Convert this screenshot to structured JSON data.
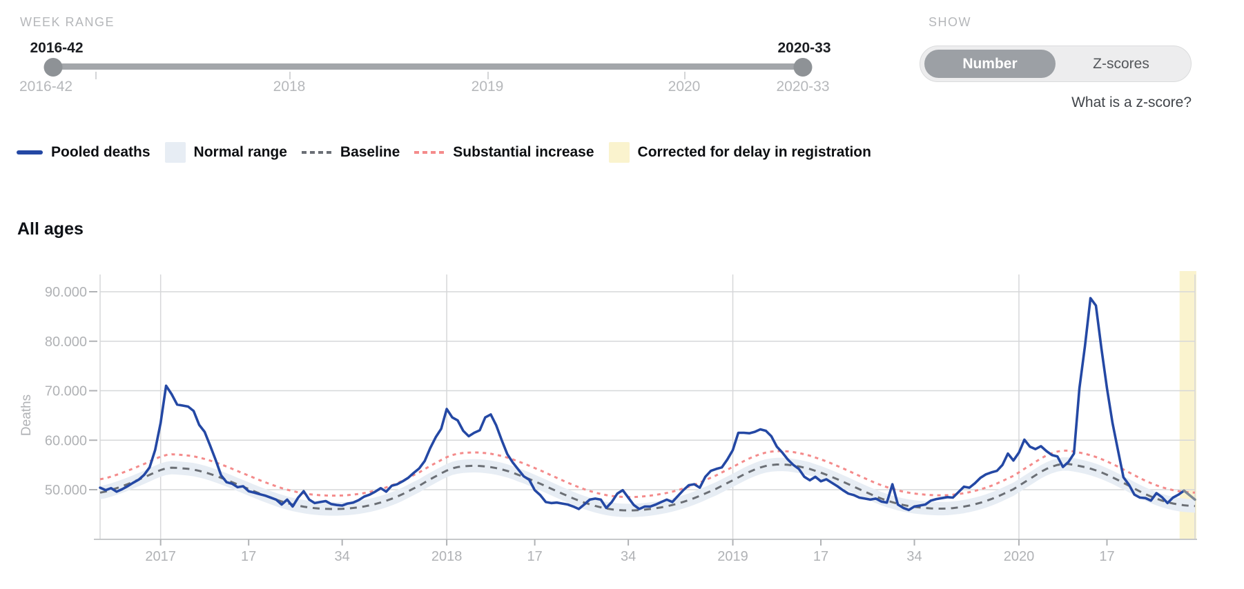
{
  "controls": {
    "week_range": {
      "label": "WEEK RANGE",
      "start_value": "2016-42",
      "end_value": "2020-33",
      "axis_labels": [
        "2016-42",
        "2018",
        "2019",
        "2020",
        "2020-33"
      ]
    },
    "show": {
      "label": "SHOW",
      "options": [
        "Number",
        "Z-scores"
      ],
      "selected": "Number",
      "help_text": "What is a z-score?"
    }
  },
  "legend": [
    {
      "label": "Pooled deaths",
      "swatch": "line",
      "color": "#2448a4"
    },
    {
      "label": "Normal range",
      "swatch": "square",
      "color": "#e7edf4"
    },
    {
      "label": "Baseline",
      "swatch": "dashes",
      "color": "#6b6f75"
    },
    {
      "label": "Substantial increase",
      "swatch": "dashes",
      "color": "#f48b8b"
    },
    {
      "label": "Corrected for delay in registration",
      "swatch": "square",
      "color": "#faf3ce"
    }
  ],
  "chart_data": {
    "type": "line",
    "title": "All ages",
    "ylabel": "Deaths",
    "x_range": {
      "start": "2016-42",
      "end": "2020-33",
      "weeks": 200
    },
    "ylim": [
      40000,
      94000
    ],
    "grid": true,
    "y_ticks": [
      {
        "value": 50000,
        "label": "50.000"
      },
      {
        "value": 60000,
        "label": "60.000"
      },
      {
        "value": 70000,
        "label": "70.000"
      },
      {
        "value": 80000,
        "label": "80.000"
      },
      {
        "value": 90000,
        "label": "90.000"
      }
    ],
    "x_ticks": [
      {
        "index": 11,
        "label": "2017",
        "year": true
      },
      {
        "index": 27,
        "label": "17"
      },
      {
        "index": 44,
        "label": "34"
      },
      {
        "index": 63,
        "label": "2018",
        "year": true
      },
      {
        "index": 79,
        "label": "17"
      },
      {
        "index": 96,
        "label": "34"
      },
      {
        "index": 115,
        "label": "2019",
        "year": true
      },
      {
        "index": 131,
        "label": "17"
      },
      {
        "index": 148,
        "label": "34"
      },
      {
        "index": 167,
        "label": "2020",
        "year": true
      },
      {
        "index": 183,
        "label": "17"
      }
    ],
    "corrected_band_from_index": 196.2,
    "corrected_line_from_index": 197,
    "series": {
      "pooled_deaths": [
        50400,
        49900,
        50300,
        49600,
        50100,
        50700,
        51400,
        52000,
        53000,
        54500,
        58000,
        63500,
        71000,
        69300,
        67200,
        67000,
        66800,
        65900,
        63100,
        61700,
        58900,
        56000,
        52900,
        51500,
        51200,
        50500,
        50700,
        49700,
        49400,
        49100,
        48800,
        48400,
        48000,
        47000,
        48000,
        46600,
        48400,
        49700,
        48000,
        47300,
        47500,
        47700,
        47100,
        46900,
        46800,
        47200,
        47400,
        47900,
        48600,
        49000,
        49600,
        50300,
        49600,
        50800,
        51100,
        51700,
        52400,
        53400,
        54300,
        55800,
        58400,
        60600,
        62300,
        66300,
        64600,
        64000,
        61900,
        60800,
        61500,
        62000,
        64600,
        65200,
        63000,
        60000,
        57200,
        55500,
        54100,
        52700,
        52000,
        49900,
        48900,
        47500,
        47300,
        47400,
        47200,
        47000,
        46600,
        46100,
        47000,
        48000,
        48200,
        48000,
        46300,
        47500,
        49200,
        49900,
        48400,
        46900,
        46100,
        46600,
        46600,
        47000,
        47500,
        48000,
        47500,
        48700,
        49900,
        50900,
        51100,
        50400,
        52600,
        53800,
        54200,
        54500,
        56100,
        58000,
        61500,
        61500,
        61400,
        61700,
        62200,
        61900,
        60800,
        58700,
        57500,
        56100,
        55000,
        54200,
        52600,
        51900,
        52600,
        51700,
        52100,
        51400,
        50700,
        49900,
        49200,
        48900,
        48400,
        48200,
        48000,
        48200,
        47600,
        47400,
        51100,
        47000,
        46300,
        45900,
        46600,
        46800,
        47000,
        47800,
        48100,
        48300,
        48500,
        48400,
        49500,
        50600,
        50400,
        51300,
        52400,
        53100,
        53500,
        53800,
        55000,
        57300,
        55900,
        57500,
        60100,
        58700,
        58200,
        58800,
        57800,
        57000,
        56700,
        54600,
        55600,
        57300,
        70500,
        79000,
        88700,
        87200,
        78500,
        70500,
        63500,
        58000,
        52500,
        51000,
        49000,
        48400,
        48300,
        47800,
        49300,
        48500,
        47300,
        48400,
        49000,
        49800,
        48900,
        48000
      ],
      "baseline_knots": [
        [
          0,
          49400
        ],
        [
          4,
          50700
        ],
        [
          8,
          52500
        ],
        [
          12,
          54300
        ],
        [
          15,
          54300
        ],
        [
          18,
          53800
        ],
        [
          22,
          52400
        ],
        [
          26,
          50600
        ],
        [
          30,
          48800
        ],
        [
          34,
          47300
        ],
        [
          38,
          46400
        ],
        [
          42,
          46100
        ],
        [
          46,
          46300
        ],
        [
          50,
          47100
        ],
        [
          54,
          48600
        ],
        [
          58,
          50800
        ],
        [
          61,
          52700
        ],
        [
          64,
          54300
        ],
        [
          67,
          54800
        ],
        [
          70,
          54700
        ],
        [
          73,
          54100
        ],
        [
          76,
          53000
        ],
        [
          80,
          51200
        ],
        [
          84,
          49200
        ],
        [
          88,
          47400
        ],
        [
          92,
          46200
        ],
        [
          96,
          45800
        ],
        [
          100,
          46100
        ],
        [
          104,
          46900
        ],
        [
          108,
          48300
        ],
        [
          112,
          50200
        ],
        [
          115,
          51900
        ],
        [
          118,
          53600
        ],
        [
          121,
          54800
        ],
        [
          124,
          55100
        ],
        [
          127,
          54700
        ],
        [
          130,
          53800
        ],
        [
          134,
          52100
        ],
        [
          138,
          50100
        ],
        [
          142,
          48200
        ],
        [
          146,
          46900
        ],
        [
          150,
          46300
        ],
        [
          154,
          46200
        ],
        [
          158,
          46800
        ],
        [
          162,
          48100
        ],
        [
          166,
          50100
        ],
        [
          169,
          52200
        ],
        [
          172,
          54200
        ],
        [
          175,
          55200
        ],
        [
          178,
          54800
        ],
        [
          181,
          53900
        ],
        [
          184,
          52500
        ],
        [
          187,
          50800
        ],
        [
          190,
          49100
        ],
        [
          193,
          47800
        ],
        [
          196,
          47000
        ],
        [
          199,
          46700
        ]
      ],
      "substantial_increase_knots": [
        [
          0,
          52100
        ],
        [
          4,
          53400
        ],
        [
          8,
          55200
        ],
        [
          12,
          57000
        ],
        [
          15,
          57000
        ],
        [
          18,
          56500
        ],
        [
          22,
          55100
        ],
        [
          26,
          53300
        ],
        [
          30,
          51500
        ],
        [
          34,
          50000
        ],
        [
          38,
          49100
        ],
        [
          42,
          48800
        ],
        [
          46,
          49000
        ],
        [
          50,
          49800
        ],
        [
          54,
          51300
        ],
        [
          58,
          53500
        ],
        [
          61,
          55400
        ],
        [
          64,
          57000
        ],
        [
          67,
          57500
        ],
        [
          70,
          57400
        ],
        [
          73,
          56800
        ],
        [
          76,
          55700
        ],
        [
          80,
          53900
        ],
        [
          84,
          51900
        ],
        [
          88,
          50100
        ],
        [
          92,
          48900
        ],
        [
          96,
          48500
        ],
        [
          100,
          48800
        ],
        [
          104,
          49600
        ],
        [
          108,
          51000
        ],
        [
          112,
          52900
        ],
        [
          115,
          54600
        ],
        [
          118,
          56300
        ],
        [
          121,
          57500
        ],
        [
          124,
          57800
        ],
        [
          127,
          57400
        ],
        [
          130,
          56500
        ],
        [
          134,
          54800
        ],
        [
          138,
          52800
        ],
        [
          142,
          50900
        ],
        [
          146,
          49600
        ],
        [
          150,
          49000
        ],
        [
          154,
          48900
        ],
        [
          158,
          49500
        ],
        [
          162,
          50800
        ],
        [
          166,
          52800
        ],
        [
          169,
          54900
        ],
        [
          172,
          56900
        ],
        [
          175,
          57900
        ],
        [
          178,
          57500
        ],
        [
          181,
          56600
        ],
        [
          184,
          55200
        ],
        [
          187,
          53500
        ],
        [
          190,
          51800
        ],
        [
          193,
          50500
        ],
        [
          196,
          49700
        ],
        [
          199,
          49400
        ]
      ],
      "normal_range_halfwidth": 1350
    },
    "colors": {
      "pooled": "#2448a4",
      "corrected_line": "#7c8894",
      "baseline": "#6b6f75",
      "substantial": "#f48b8b",
      "normal_range": "#e7edf4",
      "corrected_band": "#faf3ce",
      "grid": "#d6d7d9",
      "frame": "#c6c8ca",
      "axis_text": "#b0b2b5"
    }
  }
}
